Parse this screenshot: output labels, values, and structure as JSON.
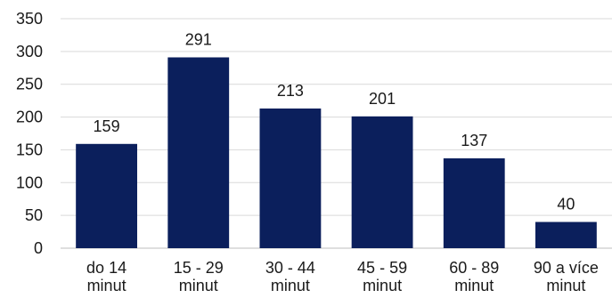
{
  "chart_data": {
    "type": "bar",
    "categories": [
      [
        "do 14",
        "minut"
      ],
      [
        "15 - 29",
        "minut"
      ],
      [
        "30 - 44",
        "minut"
      ],
      [
        "45 - 59",
        "minut"
      ],
      [
        "60 - 89",
        "minut"
      ],
      [
        "90 a více",
        "minut"
      ]
    ],
    "values": [
      159,
      291,
      213,
      201,
      137,
      40
    ],
    "data_labels": [
      "159",
      "291",
      "213",
      "201",
      "137",
      "40"
    ],
    "y_ticks": [
      0,
      50,
      100,
      150,
      200,
      250,
      300,
      350
    ],
    "ylim": [
      0,
      350
    ],
    "grid": true,
    "legend": "none",
    "bar_color": "#0b1f5c"
  }
}
